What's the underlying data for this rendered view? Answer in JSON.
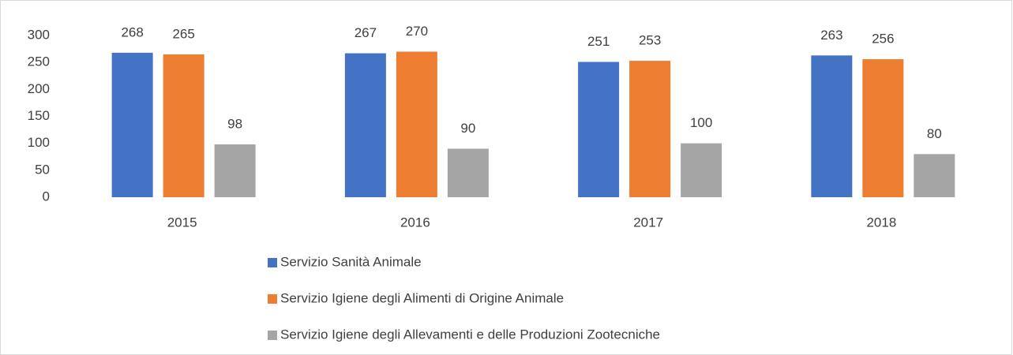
{
  "chart_data": {
    "type": "bar",
    "categories": [
      "2015",
      "2016",
      "2017",
      "2018"
    ],
    "series": [
      {
        "name": "Servizio Sanità Animale",
        "color": "#4472c4",
        "values": [
          268,
          267,
          251,
          263
        ]
      },
      {
        "name": "Servizio Igiene degli Alimenti di Origine Animale",
        "color": "#ed7d31",
        "values": [
          265,
          270,
          253,
          256
        ]
      },
      {
        "name": "Servizio Igiene degli Allevamenti e delle Produzioni Zootecniche",
        "color": "#a5a5a5",
        "values": [
          98,
          90,
          100,
          80
        ]
      }
    ],
    "ylim": [
      0,
      300
    ],
    "yticks": [
      0,
      50,
      100,
      150,
      200,
      250,
      300
    ],
    "grid": false,
    "legend": "bottom"
  }
}
